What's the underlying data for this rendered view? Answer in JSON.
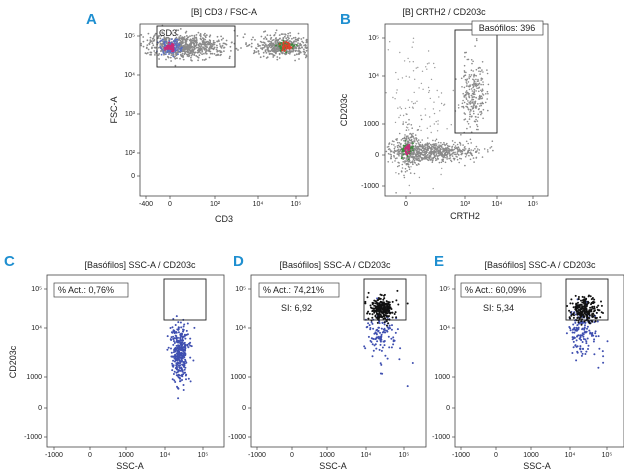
{
  "chart_data": [
    {
      "id": "A",
      "type": "scatter",
      "panel_letter": "A",
      "title": "[B] CD3 / FSC-A",
      "xlabel": "CD3",
      "ylabel": "FSC-A",
      "x_ticks": [
        "-400",
        "0",
        "10²",
        "10⁴",
        "10⁵"
      ],
      "y_ticks": [
        "10⁵",
        "10⁴",
        "10³",
        "10²",
        "0"
      ],
      "gate": {
        "label": "CD3"
      },
      "populations": [
        {
          "name": "CD3-negative cluster",
          "x_center": 0,
          "y_center": "10⁵",
          "color": "#8a8a8a",
          "core_color": "#c92a7a"
        },
        {
          "name": "CD3-positive cluster",
          "x_center": "10⁴–10⁵",
          "y_center": "10⁵",
          "color": "#8a8a8a",
          "core_color": "#e0402b"
        }
      ]
    },
    {
      "id": "B",
      "type": "scatter",
      "panel_letter": "B",
      "title": "[B] CRTH2 / CD203c",
      "xlabel": "CRTH2",
      "ylabel": "CD203c",
      "x_ticks": [
        "0",
        "10³",
        "10⁴",
        "10⁵"
      ],
      "y_ticks": [
        "10⁵",
        "10⁴",
        "1000",
        "0",
        "-1000"
      ],
      "gate": {
        "label": "Basófilos: 396",
        "count": 396
      }
    },
    {
      "id": "C",
      "type": "scatter",
      "panel_letter": "C",
      "title": "[Basófilos] SSC-A / CD203c",
      "xlabel": "SSC-A",
      "ylabel": "CD203c",
      "x_ticks": [
        "-1000",
        "0",
        "1000",
        "10⁴",
        "10⁵"
      ],
      "y_ticks": [
        "10⁵",
        "10⁴",
        "1000",
        "0",
        "-1000"
      ],
      "act_label": "% Act.: 0,76%",
      "act_percent": 0.76,
      "si_label": ""
    },
    {
      "id": "D",
      "type": "scatter",
      "panel_letter": "D",
      "title": "[Basófilos] SSC-A / CD203c",
      "xlabel": "SSC-A",
      "ylabel": "",
      "x_ticks": [
        "-1000",
        "0",
        "1000",
        "10⁴",
        "10⁵"
      ],
      "y_ticks": [
        "10⁵",
        "10⁴",
        "1000",
        "0",
        "-1000"
      ],
      "act_label": "% Act.: 74,21%",
      "act_percent": 74.21,
      "si_label": "SI: 6,92",
      "si": 6.92
    },
    {
      "id": "E",
      "type": "scatter",
      "panel_letter": "E",
      "title": "[Basófilos] SSC-A / CD203c",
      "xlabel": "SSC-A",
      "ylabel": "",
      "x_ticks": [
        "-1000",
        "0",
        "1000",
        "10⁴",
        "10⁵"
      ],
      "y_ticks": [
        "10⁵",
        "10⁴",
        "1000",
        "0",
        "-1000"
      ],
      "act_label": "% Act.: 60,09%",
      "act_percent": 60.09,
      "si_label": "SI: 5,34",
      "si": 5.34
    }
  ],
  "colors": {
    "letter": "#1f8fd0",
    "gray_events": "#8a8a8a",
    "blue_events": "#3f4fb0",
    "black_events": "#111111"
  }
}
